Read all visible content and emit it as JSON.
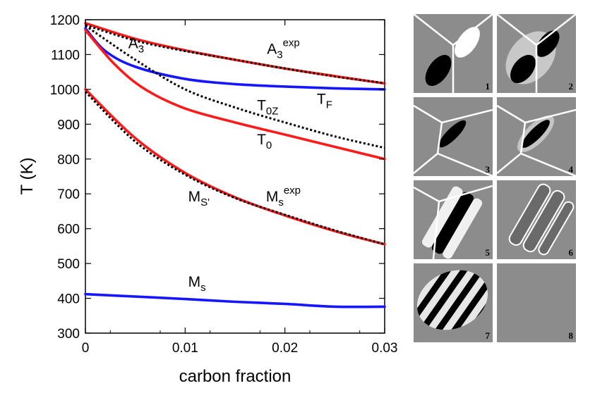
{
  "chart_data": {
    "type": "line",
    "xlabel": "carbon fraction",
    "ylabel": "T (K)",
    "xlim": [
      0,
      0.03
    ],
    "ylim": [
      300,
      1200
    ],
    "xticks": [
      "0",
      "0.01",
      "0.02",
      "0.03"
    ],
    "yticks": [
      "300",
      "400",
      "500",
      "600",
      "700",
      "800",
      "900",
      "1000",
      "1100",
      "1200"
    ],
    "series": [
      {
        "name": "A3exp",
        "color": "#000000",
        "dash": true,
        "x": [
          0,
          0.005,
          0.01,
          0.015,
          0.02,
          0.025,
          0.03
        ],
        "y": [
          1185,
          1140,
          1110,
          1085,
          1060,
          1037,
          1018
        ]
      },
      {
        "name": "A3",
        "color": "#ff1a1a",
        "dash": false,
        "x": [
          0,
          0.005,
          0.01,
          0.015,
          0.02,
          0.025,
          0.03
        ],
        "y": [
          1190,
          1145,
          1112,
          1085,
          1060,
          1038,
          1017
        ]
      },
      {
        "name": "TF",
        "color": "#1515ff",
        "dash": false,
        "x": [
          0,
          0.002,
          0.005,
          0.01,
          0.015,
          0.02,
          0.025,
          0.03
        ],
        "y": [
          1175,
          1110,
          1065,
          1030,
          1015,
          1008,
          1003,
          1000
        ]
      },
      {
        "name": "T0Z",
        "color": "#000000",
        "dash": true,
        "x": [
          0,
          0.005,
          0.01,
          0.015,
          0.02,
          0.025,
          0.03
        ],
        "y": [
          1183,
          1085,
          1000,
          948,
          905,
          865,
          832
        ]
      },
      {
        "name": "T0",
        "color": "#ff1a1a",
        "dash": false,
        "x": [
          0,
          0.003,
          0.006,
          0.01,
          0.015,
          0.02,
          0.025,
          0.03
        ],
        "y": [
          1170,
          1070,
          1000,
          945,
          905,
          870,
          835,
          800
        ]
      },
      {
        "name": "MS'",
        "color": "#ff1a1a",
        "dash": false,
        "x": [
          0,
          0.005,
          0.01,
          0.015,
          0.02,
          0.025,
          0.03
        ],
        "y": [
          1000,
          860,
          760,
          690,
          638,
          593,
          555
        ]
      },
      {
        "name": "Msexp",
        "color": "#000000",
        "dash": true,
        "x": [
          0,
          0.005,
          0.01,
          0.015,
          0.02,
          0.025,
          0.03
        ],
        "y": [
          993,
          850,
          755,
          688,
          640,
          595,
          555
        ]
      },
      {
        "name": "Ms",
        "color": "#1515ff",
        "dash": false,
        "x": [
          0,
          0.005,
          0.01,
          0.015,
          0.02,
          0.025,
          0.03
        ],
        "y": [
          412,
          405,
          398,
          390,
          384,
          376,
          376
        ]
      }
    ],
    "annotations": [
      {
        "text": "A",
        "sub": "3",
        "sup": "",
        "x": 0.0043,
        "y": 1118
      },
      {
        "text": "A",
        "sub": "3",
        "sup": "exp",
        "x": 0.0182,
        "y": 1102
      },
      {
        "text": "T",
        "sub": "F",
        "sup": "",
        "x": 0.0232,
        "y": 958
      },
      {
        "text": "T",
        "sub": "0Z",
        "sup": "",
        "x": 0.0172,
        "y": 940
      },
      {
        "text": "T",
        "sub": "0",
        "sup": "",
        "x": 0.0172,
        "y": 842
      },
      {
        "text": "M",
        "sub": "S'",
        "sup": "",
        "x": 0.0103,
        "y": 678
      },
      {
        "text": "M",
        "sub": "s",
        "sup": "exp",
        "x": 0.0181,
        "y": 678
      },
      {
        "text": "M",
        "sub": "s",
        "sup": "",
        "x": 0.0103,
        "y": 433
      }
    ]
  },
  "panels": [
    {
      "number": "1"
    },
    {
      "number": "2"
    },
    {
      "number": "3"
    },
    {
      "number": "4"
    },
    {
      "number": "5"
    },
    {
      "number": "6"
    },
    {
      "number": "7"
    },
    {
      "number": "8"
    }
  ]
}
